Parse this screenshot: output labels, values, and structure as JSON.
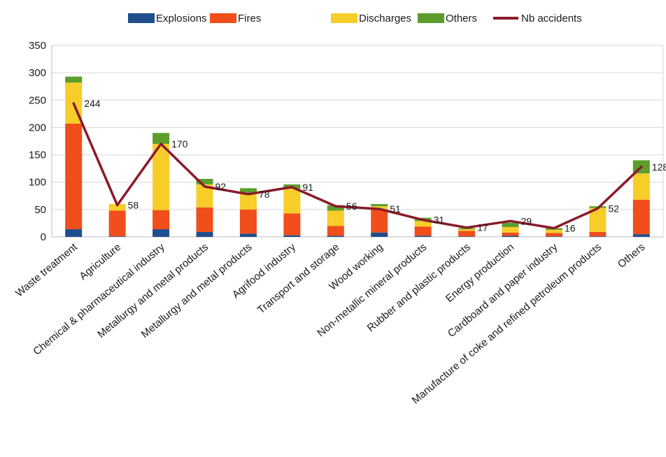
{
  "chart_data": {
    "type": "bar",
    "stacked": true,
    "categories": [
      "Waste treatment",
      "Agriculture",
      "Chemical & pharmaceutical industry",
      "Metallurgy and metal products",
      "Metallurgy and metal products",
      "Agrifood industry",
      "Transport and storage",
      "Wood working",
      "Non-metallic mineral products",
      "Rubber and plastic products",
      "Energy production",
      "Cardboard and paper industry",
      "Manufacture of coke and refined petroleum products",
      "Others"
    ],
    "series": [
      {
        "name": "Explosions",
        "color": "#1f4e8c",
        "values": [
          14,
          1,
          14,
          9,
          6,
          3,
          2,
          8,
          2,
          1,
          2,
          1,
          1,
          5
        ]
      },
      {
        "name": "Fires",
        "color": "#f04e1a",
        "values": [
          193,
          47,
          35,
          45,
          44,
          40,
          18,
          42,
          17,
          10,
          6,
          6,
          8,
          63
        ]
      },
      {
        "name": "Discharges",
        "color": "#f7cd2a",
        "values": [
          75,
          12,
          121,
          42,
          30,
          45,
          28,
          6,
          10,
          3,
          10,
          6,
          44,
          48
        ]
      },
      {
        "name": "Others",
        "color": "#5c9e2e",
        "values": [
          11,
          0,
          20,
          10,
          9,
          8,
          10,
          4,
          6,
          2,
          8,
          3,
          3,
          24
        ]
      }
    ],
    "line_series": {
      "name": "Nb accidents",
      "color": "#8b1a2b",
      "values": [
        244,
        58,
        170,
        92,
        78,
        91,
        56,
        51,
        31,
        17,
        29,
        16,
        52,
        128
      ],
      "labels": [
        "244",
        "58",
        "170",
        "92",
        "78",
        "91",
        "56",
        "51",
        "31",
        "17",
        "29",
        "16",
        "52",
        "128"
      ]
    },
    "y_ticks": [
      "0",
      "50",
      "100",
      "150",
      "200",
      "250",
      "300",
      "350"
    ],
    "ylim": [
      0,
      350
    ],
    "grid": true,
    "legend_position": "top"
  }
}
